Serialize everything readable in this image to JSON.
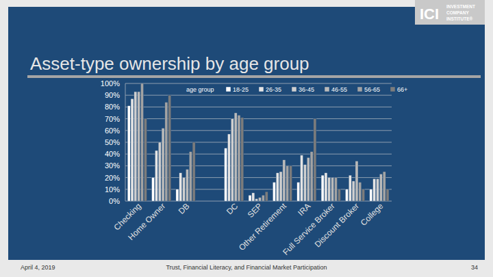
{
  "slide": {
    "logo": {
      "mark": "ICI",
      "lines": [
        "INVESTMENT",
        "COMPANY",
        "INSTITUTE®"
      ]
    },
    "footer": {
      "date": "April 4, 2019",
      "text": "Trust, Financial Literacy, and Financial Market Participation",
      "page": "34"
    }
  },
  "chart_data": {
    "type": "bar",
    "title": "Asset-type ownership by age group",
    "legend_title": "age group",
    "legend": "top",
    "grid": true,
    "categories": [
      "Checking",
      "Home Owner",
      "DB",
      null,
      "DC",
      "SEP",
      "Other Retirement",
      "IRA",
      "Full Service Broker",
      "Discount Broker",
      "College"
    ],
    "series": [
      {
        "name": "18-25",
        "color": "#ffffff",
        "values": [
          81,
          20,
          10,
          null,
          45,
          5,
          16,
          16,
          22,
          10,
          10
        ]
      },
      {
        "name": "26-35",
        "color": "#e4e4e4",
        "values": [
          87,
          43,
          24,
          null,
          57,
          7,
          24,
          39,
          24,
          22,
          19
        ]
      },
      {
        "name": "36-45",
        "color": "#cfcfcf",
        "values": [
          93,
          50,
          20,
          null,
          70,
          2,
          25,
          31,
          20,
          17,
          19
        ]
      },
      {
        "name": "46-55",
        "color": "#bababa",
        "values": [
          93,
          62,
          27,
          null,
          75,
          3,
          35,
          37,
          20,
          34,
          23
        ]
      },
      {
        "name": "56-65",
        "color": "#a3a3a3",
        "values": [
          100,
          84,
          42,
          null,
          73,
          5,
          30,
          42,
          20,
          16,
          25
        ]
      },
      {
        "name": "66+",
        "color": "#7c7c7c",
        "values": [
          70,
          90,
          50,
          null,
          71,
          8,
          30,
          70,
          10,
          10,
          10
        ]
      }
    ],
    "ylim": [
      0,
      100
    ],
    "yticks": [
      {
        "value": 0,
        "label": "0%"
      },
      {
        "value": 10,
        "label": "10%"
      },
      {
        "value": 20,
        "label": "20%"
      },
      {
        "value": 30,
        "label": "30%"
      },
      {
        "value": 40,
        "label": "40%"
      },
      {
        "value": 50,
        "label": "50%"
      },
      {
        "value": 60,
        "label": "60%"
      },
      {
        "value": 70,
        "label": "70%"
      },
      {
        "value": 80,
        "label": "80%"
      },
      {
        "value": 90,
        "label": "90%"
      },
      {
        "value": 100,
        "label": "100%"
      }
    ]
  }
}
